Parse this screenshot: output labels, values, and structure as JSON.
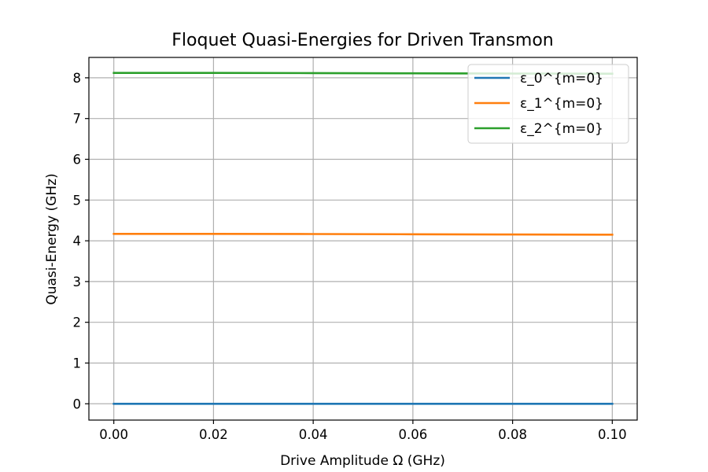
{
  "chart_data": {
    "type": "line",
    "title": "Floquet Quasi-Energies for Driven Transmon",
    "xlabel": "Drive Amplitude Ω (GHz)",
    "ylabel": "Quasi-Energy (GHz)",
    "xlim": [
      -0.005,
      0.105
    ],
    "ylim": [
      -0.4,
      8.5
    ],
    "xticks": [
      0.0,
      0.02,
      0.04,
      0.06,
      0.08,
      0.1
    ],
    "xtick_labels": [
      "0.00",
      "0.02",
      "0.04",
      "0.06",
      "0.08",
      "0.10"
    ],
    "yticks": [
      0,
      1,
      2,
      3,
      4,
      5,
      6,
      7,
      8
    ],
    "ytick_labels": [
      "0",
      "1",
      "2",
      "3",
      "4",
      "5",
      "6",
      "7",
      "8"
    ],
    "grid": true,
    "legend_position": "top-right",
    "x": [
      0.0,
      0.02,
      0.04,
      0.06,
      0.08,
      0.1
    ],
    "series": [
      {
        "name": "ε_0^{m=0}",
        "color": "#1f77b4",
        "values": [
          0.0,
          0.0,
          0.0,
          0.0,
          0.0,
          0.0
        ]
      },
      {
        "name": "ε_1^{m=0}",
        "color": "#ff7f0e",
        "values": [
          4.17,
          4.17,
          4.165,
          4.16,
          4.155,
          4.15
        ]
      },
      {
        "name": "ε_2^{m=0}",
        "color": "#2ca02c",
        "values": [
          8.12,
          8.12,
          8.115,
          8.11,
          8.105,
          8.1
        ]
      }
    ]
  }
}
